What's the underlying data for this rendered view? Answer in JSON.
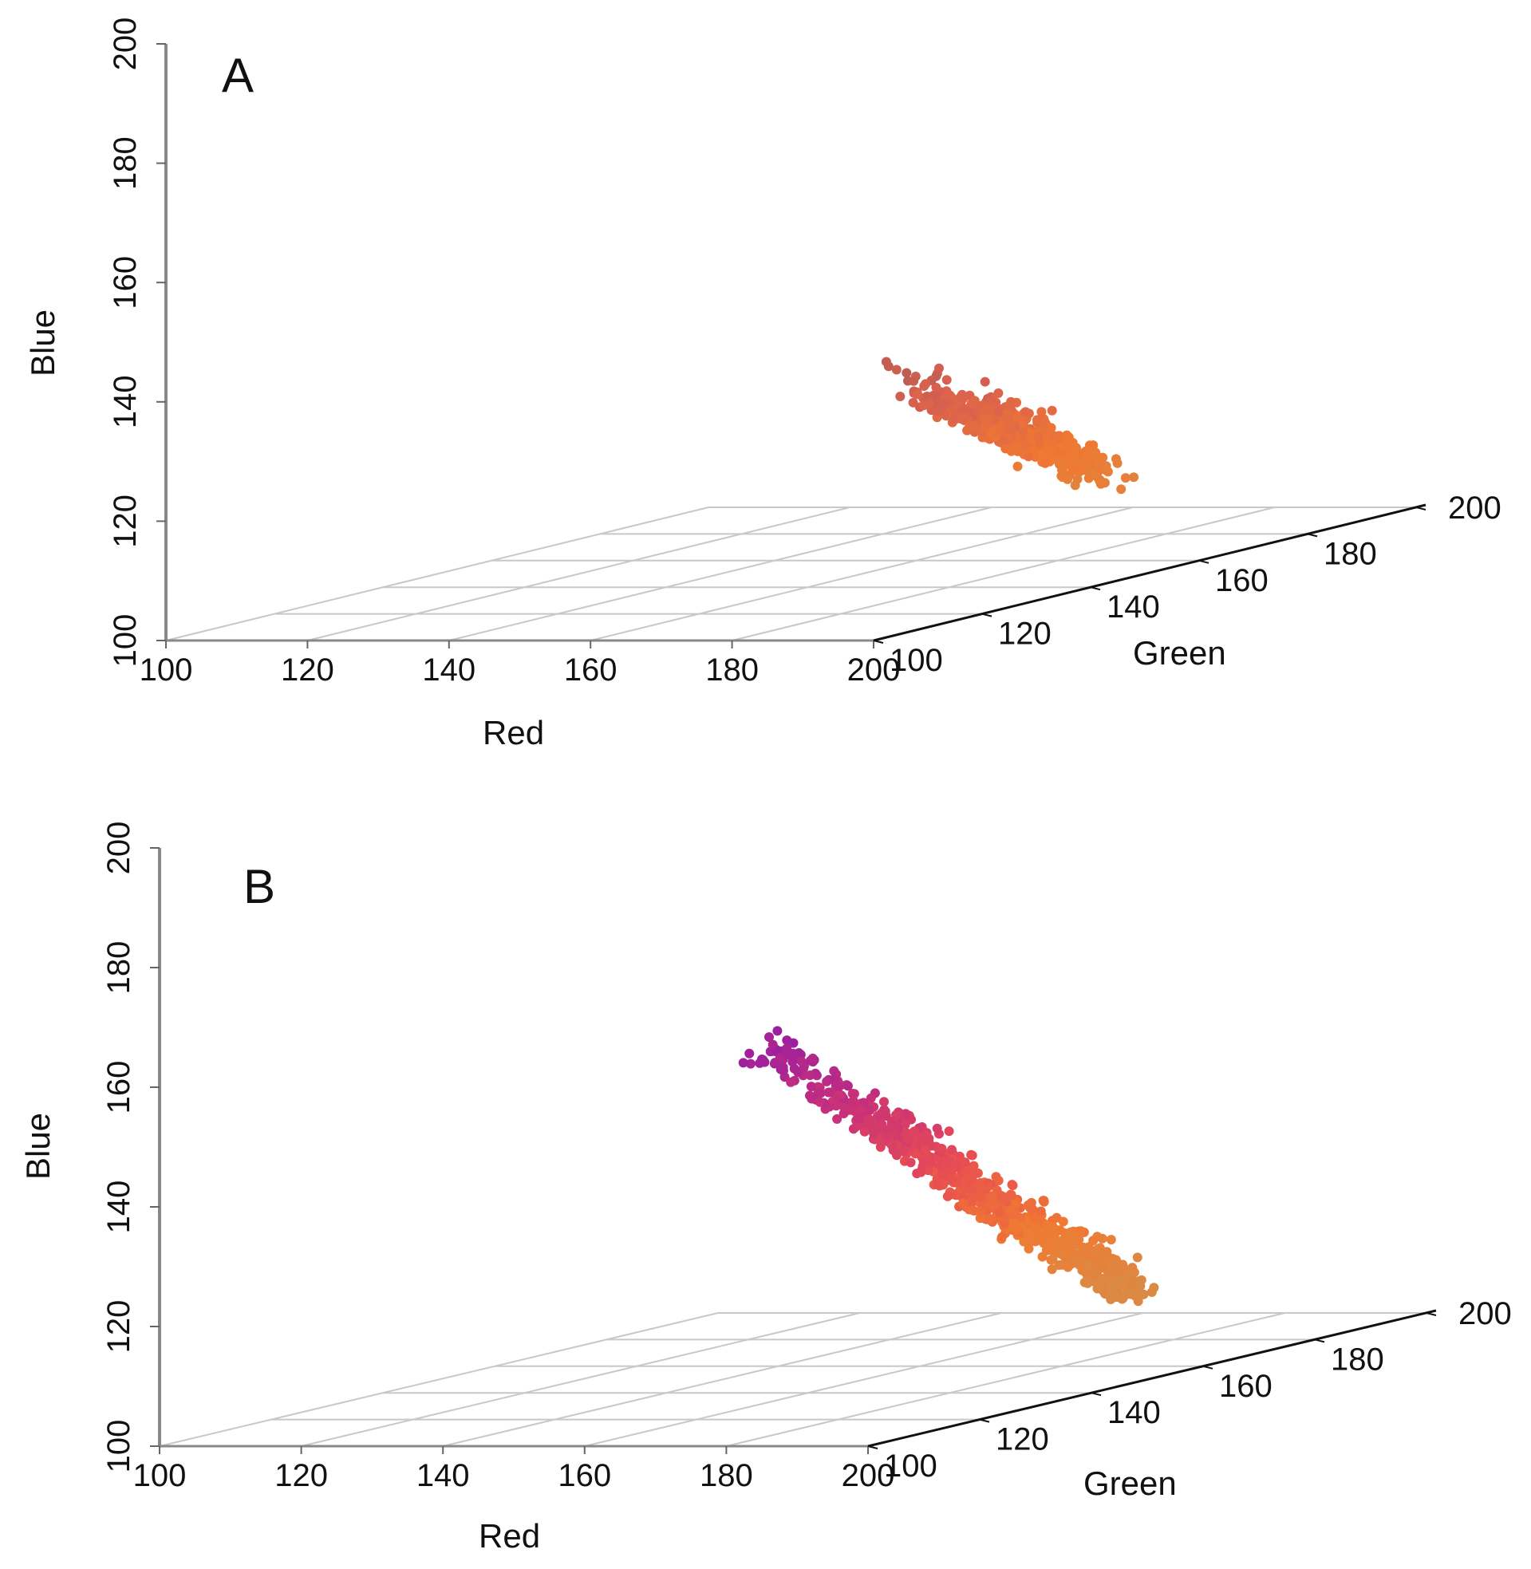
{
  "chart_data": [
    {
      "type": "scatter3d",
      "panel_label": "A",
      "xlabel": "Red",
      "ylabel": "Green",
      "zlabel": "Blue",
      "xlim": [
        100,
        200
      ],
      "ylim": [
        100,
        200
      ],
      "zlim": [
        100,
        200
      ],
      "x_ticks": [
        "100",
        "120",
        "140",
        "160",
        "180",
        "200"
      ],
      "y_ticks": [
        "100",
        "120",
        "140",
        "160",
        "180",
        "200"
      ],
      "z_ticks": [
        "100",
        "120",
        "140",
        "160",
        "180",
        "200"
      ],
      "grid": true,
      "cluster": {
        "point_count": 700,
        "red_range": [
          170,
          200
        ],
        "green_range": [
          115,
          165
        ],
        "blue_range": [
          110,
          145
        ],
        "colors": [
          "#9c5a58",
          "#d9604f",
          "#f07832",
          "#d98a45"
        ]
      }
    },
    {
      "type": "scatter3d",
      "panel_label": "B",
      "xlabel": "Red",
      "ylabel": "Green",
      "zlabel": "Blue",
      "xlim": [
        100,
        200
      ],
      "ylim": [
        100,
        200
      ],
      "zlim": [
        100,
        200
      ],
      "x_ticks": [
        "100",
        "120",
        "140",
        "160",
        "180",
        "200"
      ],
      "y_ticks": [
        "100",
        "120",
        "140",
        "160",
        "180",
        "200"
      ],
      "z_ticks": [
        "100",
        "120",
        "140",
        "160",
        "180",
        "200"
      ],
      "grid": true,
      "cluster": {
        "point_count": 800,
        "red_range": [
          170,
          200
        ],
        "green_range": [
          100,
          160
        ],
        "blue_range": [
          115,
          165
        ],
        "colors": [
          "#9a1fa0",
          "#c8307a",
          "#e84d52",
          "#f07a32",
          "#d98a45"
        ]
      }
    }
  ]
}
